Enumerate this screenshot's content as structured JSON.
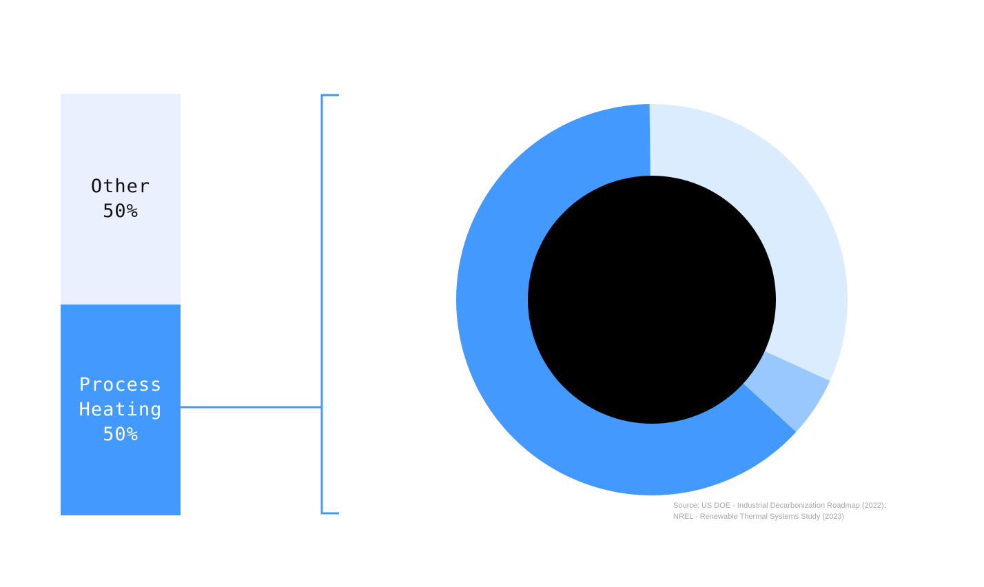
{
  "chart_data": [
    {
      "type": "bar",
      "subtype": "stacked-100",
      "segments": [
        {
          "name": "Process Heating",
          "label": "Process\nHeating\n50%",
          "value": 50,
          "color": "#4499ff",
          "text_color": "#ffffff"
        },
        {
          "name": "Other",
          "label": "Other\n50%",
          "value": 50,
          "color": "#ebf0ff",
          "text_color": "#111111"
        }
      ],
      "ylim": [
        0,
        100
      ]
    },
    {
      "type": "pie",
      "subtype": "donut",
      "slices": [
        {
          "value": 32,
          "color": "#dcecff"
        },
        {
          "value": 5,
          "color": "#99c7ff"
        },
        {
          "value": 63,
          "color": "#4499ff"
        }
      ],
      "center_color": "#000000"
    }
  ],
  "connector_color": "#4499ff",
  "source": "Source: US DOE - Industrial Decarbonization Roadmap (2022); NREL - Renewable Thermal Systems Study (2023)"
}
